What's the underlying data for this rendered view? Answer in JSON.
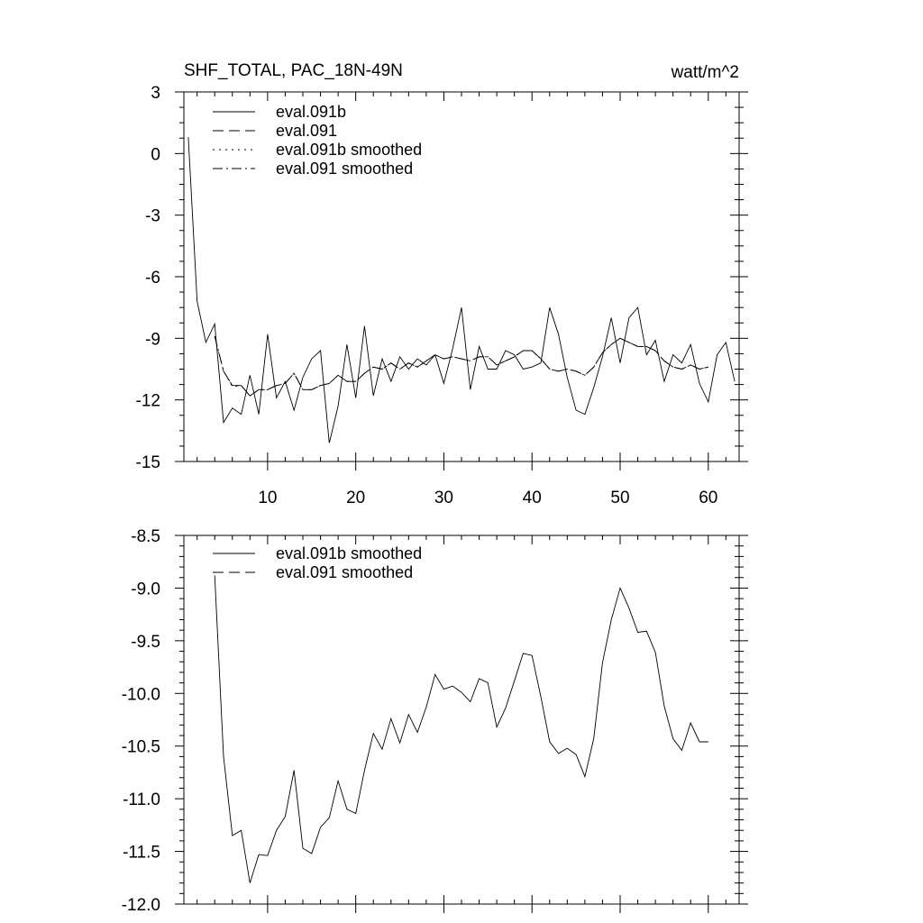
{
  "chart_data": [
    {
      "type": "line",
      "title": "SHF_TOTAL, PAC_18N-49N",
      "units": "watt/m^2",
      "xlabel": "",
      "ylabel": "",
      "xlim": [
        0.5,
        63.5
      ],
      "ylim": [
        -15,
        3
      ],
      "xticks": [
        10,
        20,
        30,
        40,
        50,
        60
      ],
      "yticks": [
        3,
        0,
        -3,
        -6,
        -9,
        -12,
        -15
      ],
      "grid": false,
      "legend_position": "top-left",
      "series": [
        {
          "name": "eval.091b",
          "dash": "solid",
          "x": [
            1,
            2,
            3,
            4,
            5,
            6,
            7,
            8,
            9,
            10,
            11,
            12,
            13,
            14,
            15,
            16,
            17,
            18,
            19,
            20,
            21,
            22,
            23,
            24,
            25,
            26,
            27,
            28,
            29,
            30,
            31,
            32,
            33,
            34,
            35,
            36,
            37,
            38,
            39,
            40,
            41,
            42,
            43,
            44,
            45,
            46,
            47,
            48,
            49,
            50,
            51,
            52,
            53,
            54,
            55,
            56,
            57,
            58,
            59,
            60,
            61,
            62,
            63
          ],
          "values": [
            0.8,
            -7.2,
            -9.2,
            -8.3,
            -13.1,
            -12.4,
            -12.7,
            -10.8,
            -12.7,
            -8.8,
            -11.9,
            -11.1,
            -12.5,
            -10.9,
            -10.0,
            -9.6,
            -14.1,
            -12.3,
            -9.3,
            -11.9,
            -8.4,
            -11.8,
            -10.0,
            -11.1,
            -9.9,
            -10.5,
            -10.0,
            -10.3,
            -9.8,
            -11.2,
            -9.5,
            -7.5,
            -11.5,
            -9.4,
            -10.5,
            -10.5,
            -9.6,
            -9.8,
            -10.5,
            -10.4,
            -10.2,
            -7.5,
            -8.8,
            -10.9,
            -12.5,
            -12.7,
            -11.4,
            -9.9,
            -8.0,
            -10.2,
            -8.0,
            -7.5,
            -9.8,
            -9.1,
            -11.1,
            -9.8,
            -10.2,
            -9.3,
            -11.2,
            -12.1,
            -9.8,
            -9.2,
            -11.1
          ]
        },
        {
          "name": "eval.091",
          "dash": "long-dash",
          "x": [
            4,
            5,
            6,
            7,
            8,
            9,
            10,
            11,
            12,
            13,
            14,
            15,
            16,
            17,
            18,
            19,
            20,
            21,
            22,
            23,
            24,
            25,
            26,
            27,
            28,
            29,
            30,
            31,
            32,
            33,
            34,
            35,
            36,
            37,
            38,
            39,
            40,
            41,
            42,
            43,
            44,
            45,
            46,
            47,
            48,
            49,
            50,
            51,
            52,
            53,
            54,
            55,
            56,
            57,
            58,
            59,
            60
          ],
          "values": [
            -8.9,
            -10.6,
            -11.3,
            -11.3,
            -11.8,
            -11.5,
            -11.5,
            -11.3,
            -11.2,
            -10.7,
            -11.5,
            -11.5,
            -11.3,
            -11.2,
            -10.8,
            -11.1,
            -11.1,
            -10.7,
            -10.4,
            -10.5,
            -10.2,
            -10.5,
            -10.2,
            -10.4,
            -10.1,
            -9.8,
            -10.0,
            -9.9,
            -10.0,
            -10.1,
            -9.9,
            -9.9,
            -10.3,
            -10.1,
            -9.9,
            -9.6,
            -9.6,
            -10.0,
            -10.5,
            -10.6,
            -10.5,
            -10.6,
            -10.8,
            -10.4,
            -9.7,
            -9.3,
            -9.0,
            -9.2,
            -9.4,
            -9.4,
            -9.6,
            -10.1,
            -10.4,
            -10.5,
            -10.3,
            -10.5,
            -10.4
          ]
        },
        {
          "name": "eval.091b smoothed",
          "dash": "dotted",
          "x": [
            4,
            5,
            6,
            7,
            8,
            9,
            10,
            11,
            12,
            13,
            14,
            15,
            16,
            17,
            18,
            19,
            20,
            21,
            22,
            23,
            24,
            25,
            26,
            27,
            28,
            29,
            30,
            31,
            32,
            33,
            34,
            35,
            36,
            37,
            38,
            39,
            40,
            41,
            42,
            43,
            44,
            45,
            46,
            47,
            48,
            49,
            50,
            51,
            52,
            53,
            54,
            55,
            56,
            57,
            58,
            59,
            60
          ],
          "values": [
            -8.9,
            -10.6,
            -11.35,
            -11.3,
            -11.8,
            -11.5,
            -11.5,
            -11.3,
            -11.2,
            -10.7,
            -11.5,
            -11.5,
            -11.3,
            -11.2,
            -10.8,
            -11.1,
            -11.1,
            -10.7,
            -10.4,
            -10.5,
            -10.2,
            -10.5,
            -10.2,
            -10.4,
            -10.1,
            -9.8,
            -10.0,
            -9.9,
            -10.0,
            -10.1,
            -9.9,
            -9.9,
            -10.3,
            -10.1,
            -9.9,
            -9.6,
            -9.6,
            -10.0,
            -10.5,
            -10.6,
            -10.5,
            -10.6,
            -10.8,
            -10.4,
            -9.7,
            -9.3,
            -9.0,
            -9.2,
            -9.4,
            -9.4,
            -9.6,
            -10.1,
            -10.4,
            -10.5,
            -10.3,
            -10.5,
            -10.4
          ]
        },
        {
          "name": "eval.091 smoothed",
          "dash": "dash-dot",
          "x": [
            4,
            5,
            6,
            7,
            8,
            9,
            10,
            11,
            12,
            13,
            14,
            15,
            16,
            17,
            18,
            19,
            20,
            21,
            22,
            23,
            24,
            25,
            26,
            27,
            28,
            29,
            30,
            31,
            32,
            33,
            34,
            35,
            36,
            37,
            38,
            39,
            40,
            41,
            42,
            43,
            44,
            45,
            46,
            47,
            48,
            49,
            50,
            51,
            52,
            53,
            54,
            55,
            56,
            57,
            58,
            59,
            60
          ],
          "values": [
            -8.9,
            -10.6,
            -11.3,
            -11.3,
            -11.8,
            -11.5,
            -11.5,
            -11.3,
            -11.2,
            -10.7,
            -11.5,
            -11.5,
            -11.3,
            -11.2,
            -10.8,
            -11.1,
            -11.1,
            -10.7,
            -10.4,
            -10.5,
            -10.2,
            -10.5,
            -10.2,
            -10.4,
            -10.1,
            -9.8,
            -10.0,
            -9.9,
            -10.0,
            -10.1,
            -9.9,
            -9.9,
            -10.3,
            -10.1,
            -9.9,
            -9.6,
            -9.6,
            -10.0,
            -10.5,
            -10.6,
            -10.5,
            -10.6,
            -10.8,
            -10.4,
            -9.7,
            -9.3,
            -9.0,
            -9.2,
            -9.4,
            -9.4,
            -9.6,
            -10.1,
            -10.4,
            -10.5,
            -10.3,
            -10.5,
            -10.4
          ]
        }
      ]
    },
    {
      "type": "line",
      "title": "",
      "units": "",
      "xlabel": "",
      "ylabel": "",
      "xlim": [
        0.5,
        63.5
      ],
      "ylim": [
        -12.0,
        -8.5
      ],
      "xticks": [
        10,
        20,
        30,
        40,
        50,
        60
      ],
      "yticks": [
        -8.5,
        -9.0,
        -9.5,
        -10.0,
        -10.5,
        -11.0,
        -11.5,
        -12.0
      ],
      "ytick_labels": [
        "-8.5",
        "-9.0",
        "-9.5",
        "-10.0",
        "-10.5",
        "-11.0",
        "-11.5",
        "-12.0"
      ],
      "grid": false,
      "legend_position": "top-left",
      "series": [
        {
          "name": "eval.091b smoothed",
          "dash": "solid",
          "x": [
            4,
            5,
            6,
            7,
            8,
            9,
            10,
            11,
            12,
            13,
            14,
            15,
            16,
            17,
            18,
            19,
            20,
            21,
            22,
            23,
            24,
            25,
            26,
            27,
            28,
            29,
            30,
            31,
            32,
            33,
            34,
            35,
            36,
            37,
            38,
            39,
            40,
            41,
            42,
            43,
            44,
            45,
            46,
            47,
            48,
            49,
            50,
            51,
            52,
            53,
            54,
            55,
            56,
            57,
            58,
            59,
            60
          ],
          "values": [
            -8.88,
            -10.6,
            -11.35,
            -11.3,
            -11.8,
            -11.53,
            -11.54,
            -11.3,
            -11.17,
            -10.73,
            -11.47,
            -11.52,
            -11.27,
            -11.18,
            -10.83,
            -11.1,
            -11.14,
            -10.73,
            -10.38,
            -10.53,
            -10.24,
            -10.47,
            -10.2,
            -10.37,
            -10.13,
            -9.82,
            -9.96,
            -9.93,
            -9.99,
            -10.08,
            -9.86,
            -9.9,
            -10.32,
            -10.14,
            -9.88,
            -9.62,
            -9.64,
            -10.03,
            -10.46,
            -10.57,
            -10.52,
            -10.58,
            -10.79,
            -10.43,
            -9.71,
            -9.3,
            -9.0,
            -9.19,
            -9.42,
            -9.41,
            -9.61,
            -10.12,
            -10.43,
            -10.54,
            -10.28,
            -10.46,
            -10.46
          ]
        },
        {
          "name": "eval.091 smoothed",
          "dash": "long-dash",
          "x": [],
          "values": []
        }
      ]
    }
  ]
}
